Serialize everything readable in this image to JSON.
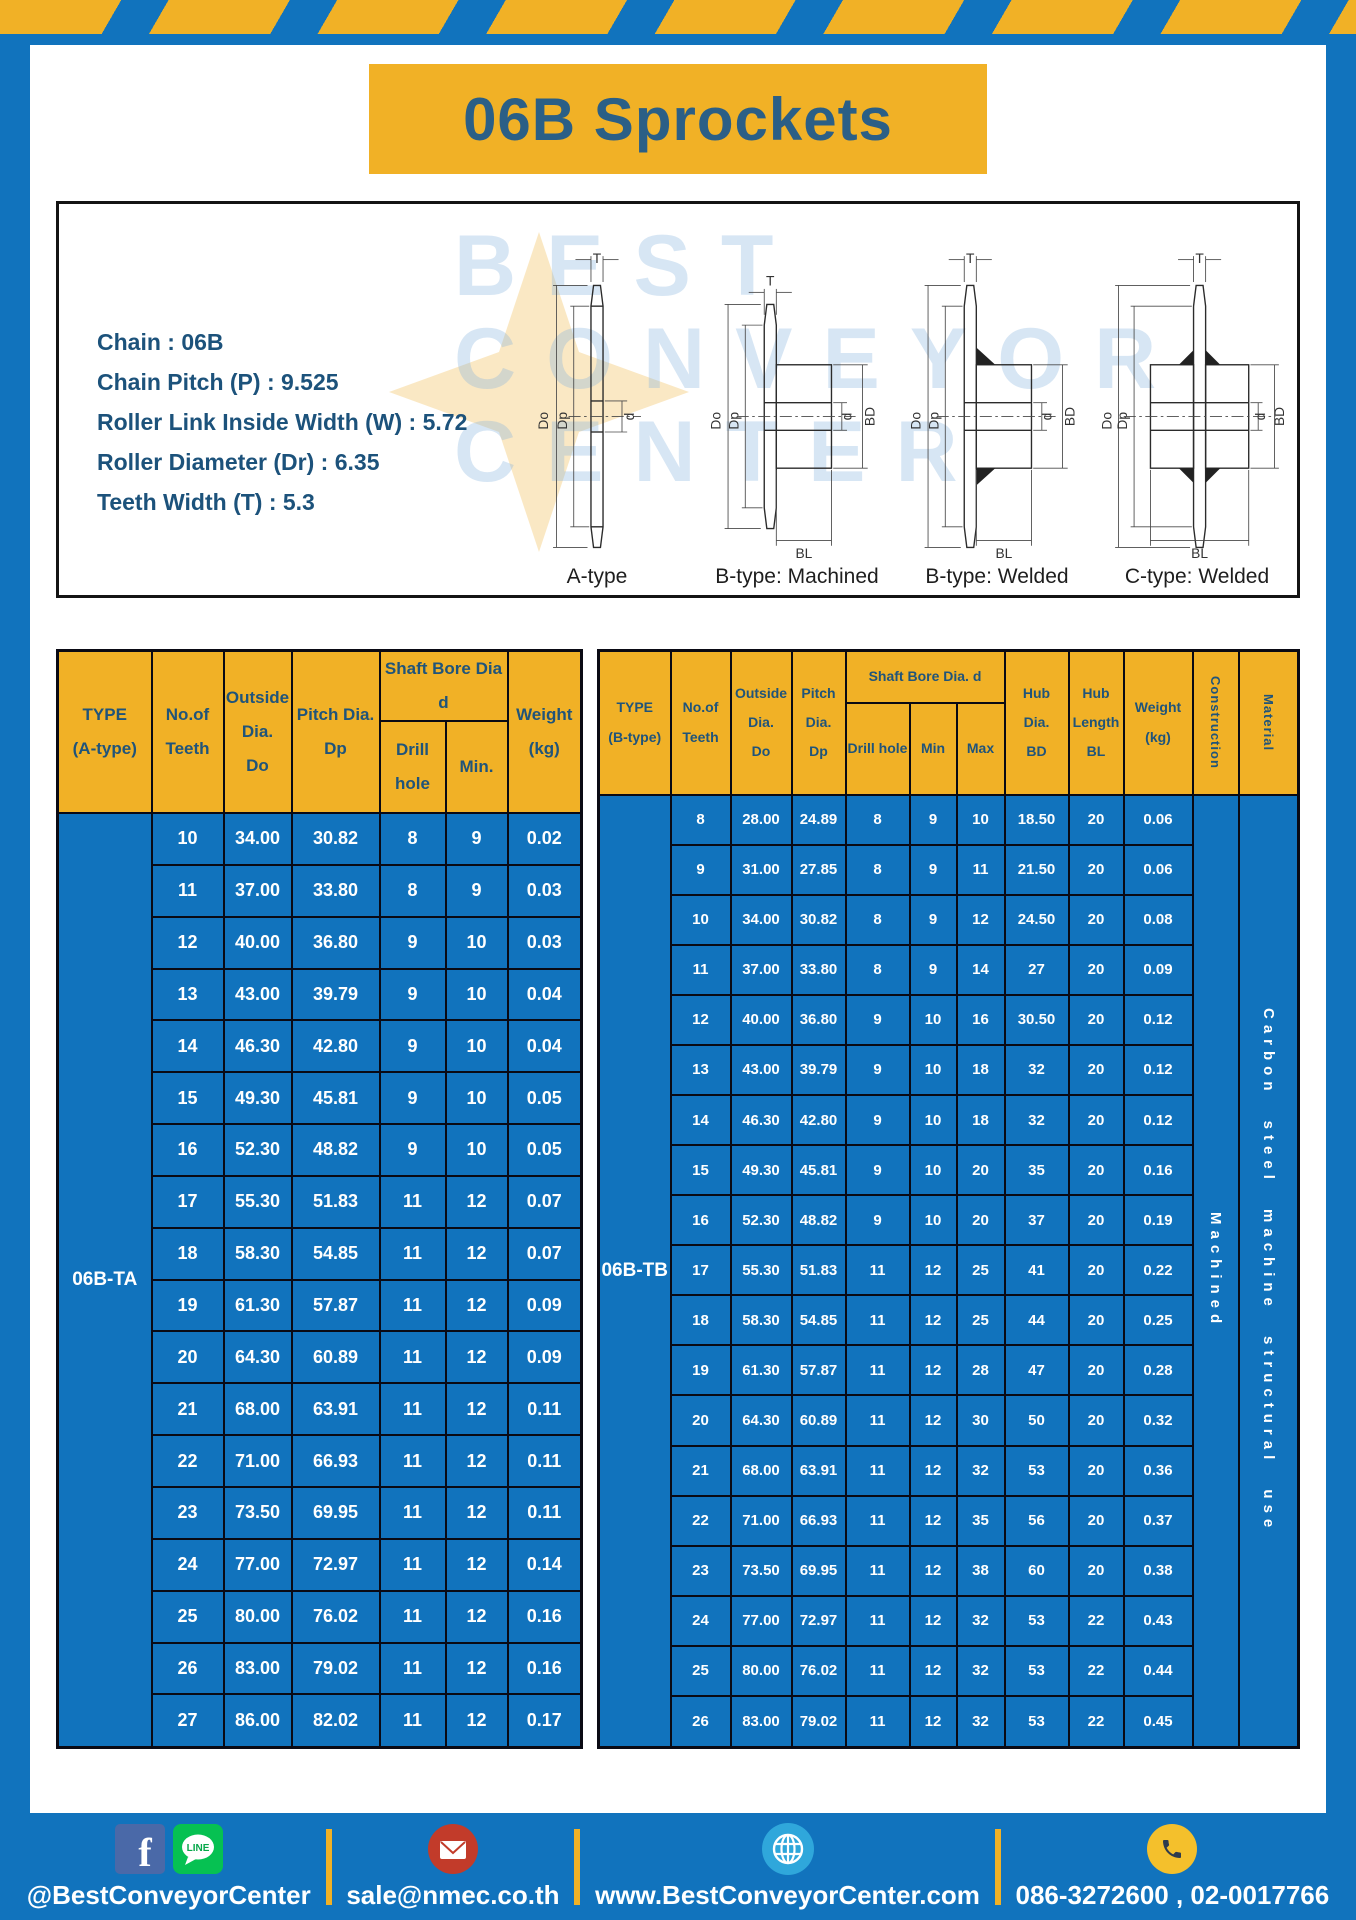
{
  "banner": {
    "title": "06B Sprockets"
  },
  "specs": {
    "lines": [
      "Chain  :  06B",
      "Chain Pitch (P)  :  9.525",
      "Roller Link Inside Width (W)  :  5.72",
      "Roller Diameter (Dr)  :  6.35",
      "Teeth Width (T)  :  5.3"
    ]
  },
  "diagrams": {
    "watermark_lines": [
      "BEST",
      "CONVEYOR",
      "CENTER"
    ],
    "captions": [
      "A-type",
      "B-type: Machined",
      "B-type: Welded",
      "C-type: Welded"
    ],
    "dims": {
      "T": "T",
      "Do": "Do",
      "Dp": "Dp",
      "d": "d",
      "BD": "BD",
      "BL": "BL"
    }
  },
  "table_a": {
    "headers": {
      "type": "TYPE\n(A-type)",
      "teeth": "No.of\nTeeth",
      "outside": "Outside\nDia.\nDo",
      "pitch": "Pitch Dia.\nDp",
      "shaft_bore": "Shaft Bore Dia d",
      "drill": "Drill hole",
      "min": "Min.",
      "weight": "Weight\n(kg)"
    },
    "type_value": "06B-TA",
    "rows": [
      [
        "10",
        "34.00",
        "30.82",
        "8",
        "9",
        "0.02"
      ],
      [
        "11",
        "37.00",
        "33.80",
        "8",
        "9",
        "0.03"
      ],
      [
        "12",
        "40.00",
        "36.80",
        "9",
        "10",
        "0.03"
      ],
      [
        "13",
        "43.00",
        "39.79",
        "9",
        "10",
        "0.04"
      ],
      [
        "14",
        "46.30",
        "42.80",
        "9",
        "10",
        "0.04"
      ],
      [
        "15",
        "49.30",
        "45.81",
        "9",
        "10",
        "0.05"
      ],
      [
        "16",
        "52.30",
        "48.82",
        "9",
        "10",
        "0.05"
      ],
      [
        "17",
        "55.30",
        "51.83",
        "11",
        "12",
        "0.07"
      ],
      [
        "18",
        "58.30",
        "54.85",
        "11",
        "12",
        "0.07"
      ],
      [
        "19",
        "61.30",
        "57.87",
        "11",
        "12",
        "0.09"
      ],
      [
        "20",
        "64.30",
        "60.89",
        "11",
        "12",
        "0.09"
      ],
      [
        "21",
        "68.00",
        "63.91",
        "11",
        "12",
        "0.11"
      ],
      [
        "22",
        "71.00",
        "66.93",
        "11",
        "12",
        "0.11"
      ],
      [
        "23",
        "73.50",
        "69.95",
        "11",
        "12",
        "0.11"
      ],
      [
        "24",
        "77.00",
        "72.97",
        "11",
        "12",
        "0.14"
      ],
      [
        "25",
        "80.00",
        "76.02",
        "11",
        "12",
        "0.16"
      ],
      [
        "26",
        "83.00",
        "79.02",
        "11",
        "12",
        "0.16"
      ],
      [
        "27",
        "86.00",
        "82.02",
        "11",
        "12",
        "0.17"
      ]
    ]
  },
  "table_b": {
    "headers": {
      "type": "TYPE\n(B-type)",
      "teeth": "No.of\nTeeth",
      "outside": "Outside\nDia.\nDo",
      "pitch": "Pitch\nDia.\nDp",
      "shaft_bore": "Shaft Bore Dia.  d",
      "drill": "Drill hole",
      "min": "Min",
      "max": "Max",
      "hub_dia": "Hub\nDia.\nBD",
      "hub_len": "Hub\nLength\nBL",
      "weight": "Weight\n(kg)",
      "construction": "Construction",
      "material": "Material"
    },
    "type_value": "06B-TB",
    "extra_cols": [
      "Machined",
      "Carbon steel machine structural use"
    ],
    "rows": [
      [
        "8",
        "28.00",
        "24.89",
        "8",
        "9",
        "10",
        "18.50",
        "20",
        "0.06"
      ],
      [
        "9",
        "31.00",
        "27.85",
        "8",
        "9",
        "11",
        "21.50",
        "20",
        "0.06"
      ],
      [
        "10",
        "34.00",
        "30.82",
        "8",
        "9",
        "12",
        "24.50",
        "20",
        "0.08"
      ],
      [
        "11",
        "37.00",
        "33.80",
        "8",
        "9",
        "14",
        "27",
        "20",
        "0.09"
      ],
      [
        "12",
        "40.00",
        "36.80",
        "9",
        "10",
        "16",
        "30.50",
        "20",
        "0.12"
      ],
      [
        "13",
        "43.00",
        "39.79",
        "9",
        "10",
        "18",
        "32",
        "20",
        "0.12"
      ],
      [
        "14",
        "46.30",
        "42.80",
        "9",
        "10",
        "18",
        "32",
        "20",
        "0.12"
      ],
      [
        "15",
        "49.30",
        "45.81",
        "9",
        "10",
        "20",
        "35",
        "20",
        "0.16"
      ],
      [
        "16",
        "52.30",
        "48.82",
        "9",
        "10",
        "20",
        "37",
        "20",
        "0.19"
      ],
      [
        "17",
        "55.30",
        "51.83",
        "11",
        "12",
        "25",
        "41",
        "20",
        "0.22"
      ],
      [
        "18",
        "58.30",
        "54.85",
        "11",
        "12",
        "25",
        "44",
        "20",
        "0.25"
      ],
      [
        "19",
        "61.30",
        "57.87",
        "11",
        "12",
        "28",
        "47",
        "20",
        "0.28"
      ],
      [
        "20",
        "64.30",
        "60.89",
        "11",
        "12",
        "30",
        "50",
        "20",
        "0.32"
      ],
      [
        "21",
        "68.00",
        "63.91",
        "11",
        "12",
        "32",
        "53",
        "20",
        "0.36"
      ],
      [
        "22",
        "71.00",
        "66.93",
        "11",
        "12",
        "35",
        "56",
        "20",
        "0.37"
      ],
      [
        "23",
        "73.50",
        "69.95",
        "11",
        "12",
        "38",
        "60",
        "20",
        "0.38"
      ],
      [
        "24",
        "77.00",
        "72.97",
        "11",
        "12",
        "32",
        "53",
        "22",
        "0.43"
      ],
      [
        "25",
        "80.00",
        "76.02",
        "11",
        "12",
        "32",
        "53",
        "22",
        "0.44"
      ],
      [
        "26",
        "83.00",
        "79.02",
        "11",
        "12",
        "32",
        "53",
        "22",
        "0.45"
      ]
    ]
  },
  "footer": {
    "facebook": "@BestConveyorCenter",
    "email": "sale@nmec.co.th",
    "website": "www.BestConveyorCenter.com",
    "phone": "086-3272600 , 02-0017766"
  }
}
